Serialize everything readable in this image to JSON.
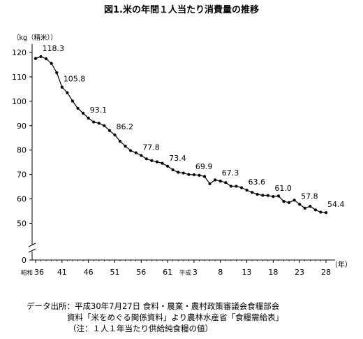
{
  "chart_data": {
    "type": "line",
    "title": "図1.米の年間１人当たり消費量の推移",
    "ylabel": "（kg（精米））",
    "xlabel": "（年）",
    "ylim": [
      45,
      120
    ],
    "axis_zero_label": "0",
    "y_ticks": [
      50,
      60,
      70,
      80,
      90,
      100,
      110,
      120
    ],
    "x_ticks": [
      {
        "year": 1961,
        "label": "36",
        "era": "昭和"
      },
      {
        "year": 1966,
        "label": "41"
      },
      {
        "year": 1971,
        "label": "46"
      },
      {
        "year": 1976,
        "label": "51"
      },
      {
        "year": 1981,
        "label": "56"
      },
      {
        "year": 1986,
        "label": "61"
      },
      {
        "year": 1991,
        "label": "3",
        "era": "平成"
      },
      {
        "year": 1996,
        "label": "8"
      },
      {
        "year": 2001,
        "label": "13"
      },
      {
        "year": 2006,
        "label": "18"
      },
      {
        "year": 2011,
        "label": "23"
      },
      {
        "year": 2016,
        "label": "28"
      }
    ],
    "x_range": [
      1961,
      2016
    ],
    "series": [
      {
        "color": "#000000",
        "x": [
          1961,
          1962,
          1963,
          1964,
          1965,
          1966,
          1967,
          1968,
          1969,
          1970,
          1971,
          1972,
          1973,
          1974,
          1975,
          1976,
          1977,
          1978,
          1979,
          1980,
          1981,
          1982,
          1983,
          1984,
          1985,
          1986,
          1987,
          1988,
          1989,
          1990,
          1991,
          1992,
          1993,
          1994,
          1995,
          1996,
          1997,
          1998,
          1999,
          2000,
          2001,
          2002,
          2003,
          2004,
          2005,
          2006,
          2007,
          2008,
          2009,
          2010,
          2011,
          2012,
          2013,
          2014,
          2015,
          2016
        ],
        "y": [
          117.5,
          118.3,
          117.4,
          115.5,
          111.7,
          105.8,
          103.5,
          100.1,
          97.1,
          95.1,
          93.1,
          91.5,
          91.0,
          90.0,
          88.0,
          86.2,
          83.6,
          81.6,
          79.8,
          78.9,
          77.8,
          76.4,
          75.7,
          75.2,
          74.6,
          73.4,
          71.9,
          70.9,
          70.6,
          70.0,
          69.9,
          69.7,
          69.2,
          66.2,
          67.8,
          67.3,
          66.7,
          65.2,
          65.2,
          64.6,
          63.6,
          62.7,
          61.9,
          61.5,
          61.4,
          61.0,
          61.2,
          59.0,
          58.5,
          59.5,
          57.8,
          56.2,
          57.0,
          55.5,
          54.6,
          54.4
        ]
      }
    ],
    "data_labels": [
      {
        "x": 1962,
        "value": "118.3"
      },
      {
        "x": 1966,
        "value": "105.8"
      },
      {
        "x": 1971,
        "value": "93.1"
      },
      {
        "x": 1976,
        "value": "86.2"
      },
      {
        "x": 1981,
        "value": "77.8"
      },
      {
        "x": 1986,
        "value": "73.4"
      },
      {
        "x": 1991,
        "value": "69.9"
      },
      {
        "x": 1996,
        "value": "67.3"
      },
      {
        "x": 2001,
        "value": "63.6"
      },
      {
        "x": 2006,
        "value": "61.0"
      },
      {
        "x": 2011,
        "value": "57.8"
      },
      {
        "x": 2016,
        "value": "54.4"
      }
    ],
    "grid": false,
    "legend": "none"
  },
  "source": {
    "line1": "データ出所：平成30年7月27日 食料・農業・農村政策審議会食糧部会",
    "line2": "資料「米をめぐる関係資料」より農林水産省「食糧需給表」",
    "line3": "（注：１人１年当たり供給純食糧の値）"
  }
}
